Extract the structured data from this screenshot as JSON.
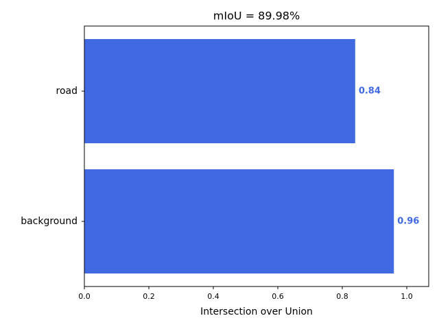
{
  "chart_data": {
    "type": "barh",
    "title": "mIoU = 89.98%",
    "xlabel": "Intersection over Union",
    "categories": [
      "road",
      "background"
    ],
    "values": [
      0.84,
      0.96
    ],
    "color": "#4169e1",
    "xlim": [
      0,
      1.068
    ],
    "xticks": [
      {
        "value": 0,
        "label": "0.0"
      },
      0.2,
      0.4,
      0.6,
      0.8,
      {
        "value": 1,
        "label": "1.0"
      }
    ]
  }
}
